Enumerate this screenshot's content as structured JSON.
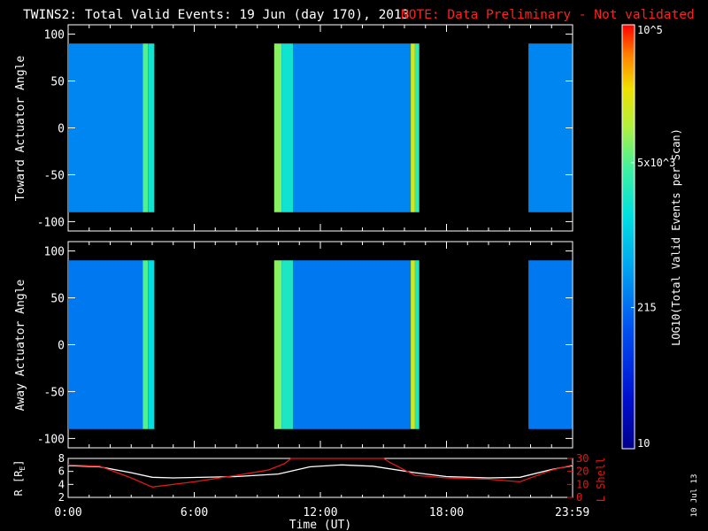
{
  "title": "TWINS2: Total Valid Events: 19 Jun (day 170), 2013",
  "note": "NOTE: Data Preliminary - Not validated",
  "date_stamp": "10 Jul 13",
  "colors": {
    "background": "#000000",
    "axis": "#ffffff",
    "note": "#ff2020",
    "lshell": "#e01818",
    "re_line": "#ffffff"
  },
  "colorbar": {
    "label": "LOG10(Total Valid Events per Scan)",
    "ticks": [
      {
        "label": "10",
        "value": 10
      },
      {
        "label": "215",
        "value": 215
      },
      {
        "label": "5x10^3",
        "value": 5000
      },
      {
        "label": "10^5",
        "value": 100000
      }
    ],
    "range": [
      10,
      100000
    ],
    "scale": "log"
  },
  "chart_data": [
    {
      "type": "heatmap",
      "ylabel": "Toward Actuator Angle",
      "ylim": [
        -110,
        110
      ],
      "yticks": [
        100,
        50,
        0,
        -50,
        -100
      ],
      "xlim": [
        0,
        24
      ],
      "data_y_range": [
        -90,
        90
      ],
      "blocks": [
        {
          "start": 0.0,
          "end": 3.55,
          "level": 2.5
        },
        {
          "start": 3.55,
          "end": 3.8,
          "level": 3.7
        },
        {
          "start": 3.8,
          "end": 4.1,
          "level": 3.3
        },
        {
          "start": 9.8,
          "end": 10.15,
          "level": 3.9
        },
        {
          "start": 10.15,
          "end": 10.7,
          "level": 3.3
        },
        {
          "start": 10.7,
          "end": 16.3,
          "level": 2.5
        },
        {
          "start": 16.3,
          "end": 16.5,
          "level": 4.2
        },
        {
          "start": 16.5,
          "end": 16.7,
          "level": 3.5
        },
        {
          "start": 21.9,
          "end": 23.983,
          "level": 2.5
        }
      ]
    },
    {
      "type": "heatmap",
      "ylabel": "Away Actuator Angle",
      "ylim": [
        -110,
        110
      ],
      "yticks": [
        100,
        50,
        0,
        -50,
        -100
      ],
      "xlim": [
        0,
        24
      ],
      "data_y_range": [
        -90,
        90
      ],
      "blocks": [
        {
          "start": 0.0,
          "end": 3.55,
          "level": 2.4
        },
        {
          "start": 3.55,
          "end": 3.8,
          "level": 3.7
        },
        {
          "start": 3.8,
          "end": 4.1,
          "level": 3.2
        },
        {
          "start": 9.8,
          "end": 10.15,
          "level": 3.9
        },
        {
          "start": 10.15,
          "end": 10.7,
          "level": 3.4
        },
        {
          "start": 10.7,
          "end": 16.3,
          "level": 2.4
        },
        {
          "start": 16.3,
          "end": 16.5,
          "level": 4.2
        },
        {
          "start": 16.5,
          "end": 16.7,
          "level": 3.4
        },
        {
          "start": 21.9,
          "end": 23.983,
          "level": 2.4
        }
      ]
    },
    {
      "type": "line",
      "xlabel": "Time (UT)",
      "xticks": [
        "0:00",
        "6:00",
        "12:00",
        "18:00",
        "23:59"
      ],
      "xtick_values": [
        0,
        6,
        12,
        18,
        23.983
      ],
      "xlim": [
        0,
        24
      ],
      "ylabel_left": "R [RE]",
      "ylabel_left_main": "R [R",
      "ylabel_left_sub": "E",
      "ylabel_left_end": "]",
      "ylim_left": [
        2,
        8
      ],
      "yticks_left": [
        "2",
        "4",
        "6",
        "8"
      ],
      "ylabel_right": "L Shell",
      "ylim_right": [
        0,
        30
      ],
      "yticks_right": [
        "0",
        "10",
        "20",
        "30"
      ],
      "series": [
        {
          "axis": "left",
          "x": [
            0,
            1.5,
            3,
            4,
            5,
            8,
            10,
            11.5,
            13,
            14.5,
            16.5,
            18,
            20,
            21.5,
            23,
            24
          ],
          "y": [
            6.9,
            6.7,
            5.8,
            5.1,
            5.0,
            5.2,
            5.6,
            6.7,
            7.0,
            6.8,
            5.8,
            5.2,
            5.0,
            5.1,
            6.3,
            6.9
          ]
        },
        {
          "axis": "right",
          "x": [
            0,
            1.5,
            3,
            4,
            6,
            8,
            9.5,
            10.3,
            10.6,
            15.0,
            15.3,
            16.5,
            18,
            20,
            21.5,
            23,
            24
          ],
          "y": [
            25,
            24,
            15,
            8,
            12,
            17,
            21,
            26,
            30,
            30,
            27,
            17,
            15,
            14,
            12,
            21,
            25
          ]
        }
      ]
    }
  ]
}
